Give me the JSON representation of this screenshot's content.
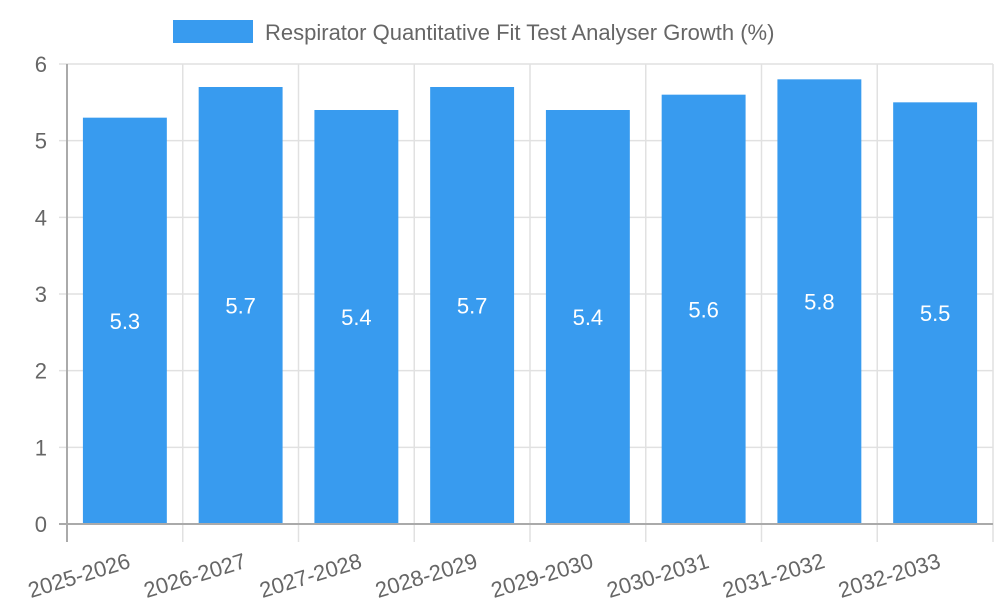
{
  "chart_data": {
    "type": "bar",
    "title": "",
    "legend": [
      {
        "label": "Respirator Quantitative Fit Test Analyser Growth (%)",
        "color": "#389BEF"
      }
    ],
    "legend_position": "top",
    "categories": [
      "2025-2026",
      "2026-2027",
      "2027-2028",
      "2028-2029",
      "2029-2030",
      "2030-2031",
      "2031-2032",
      "2032-2033"
    ],
    "series": [
      {
        "name": "Respirator Quantitative Fit Test Analyser Growth (%)",
        "values": [
          5.3,
          5.7,
          5.4,
          5.7,
          5.4,
          5.6,
          5.8,
          5.5
        ],
        "color": "#389BEF"
      }
    ],
    "data_labels": [
      "5.3",
      "5.7",
      "5.4",
      "5.7",
      "5.4",
      "5.6",
      "5.8",
      "5.5"
    ],
    "xlabel": "",
    "ylabel": "",
    "ylim": [
      0,
      6
    ],
    "y_ticks": [
      0,
      1,
      2,
      3,
      4,
      5,
      6
    ],
    "grid": true
  }
}
